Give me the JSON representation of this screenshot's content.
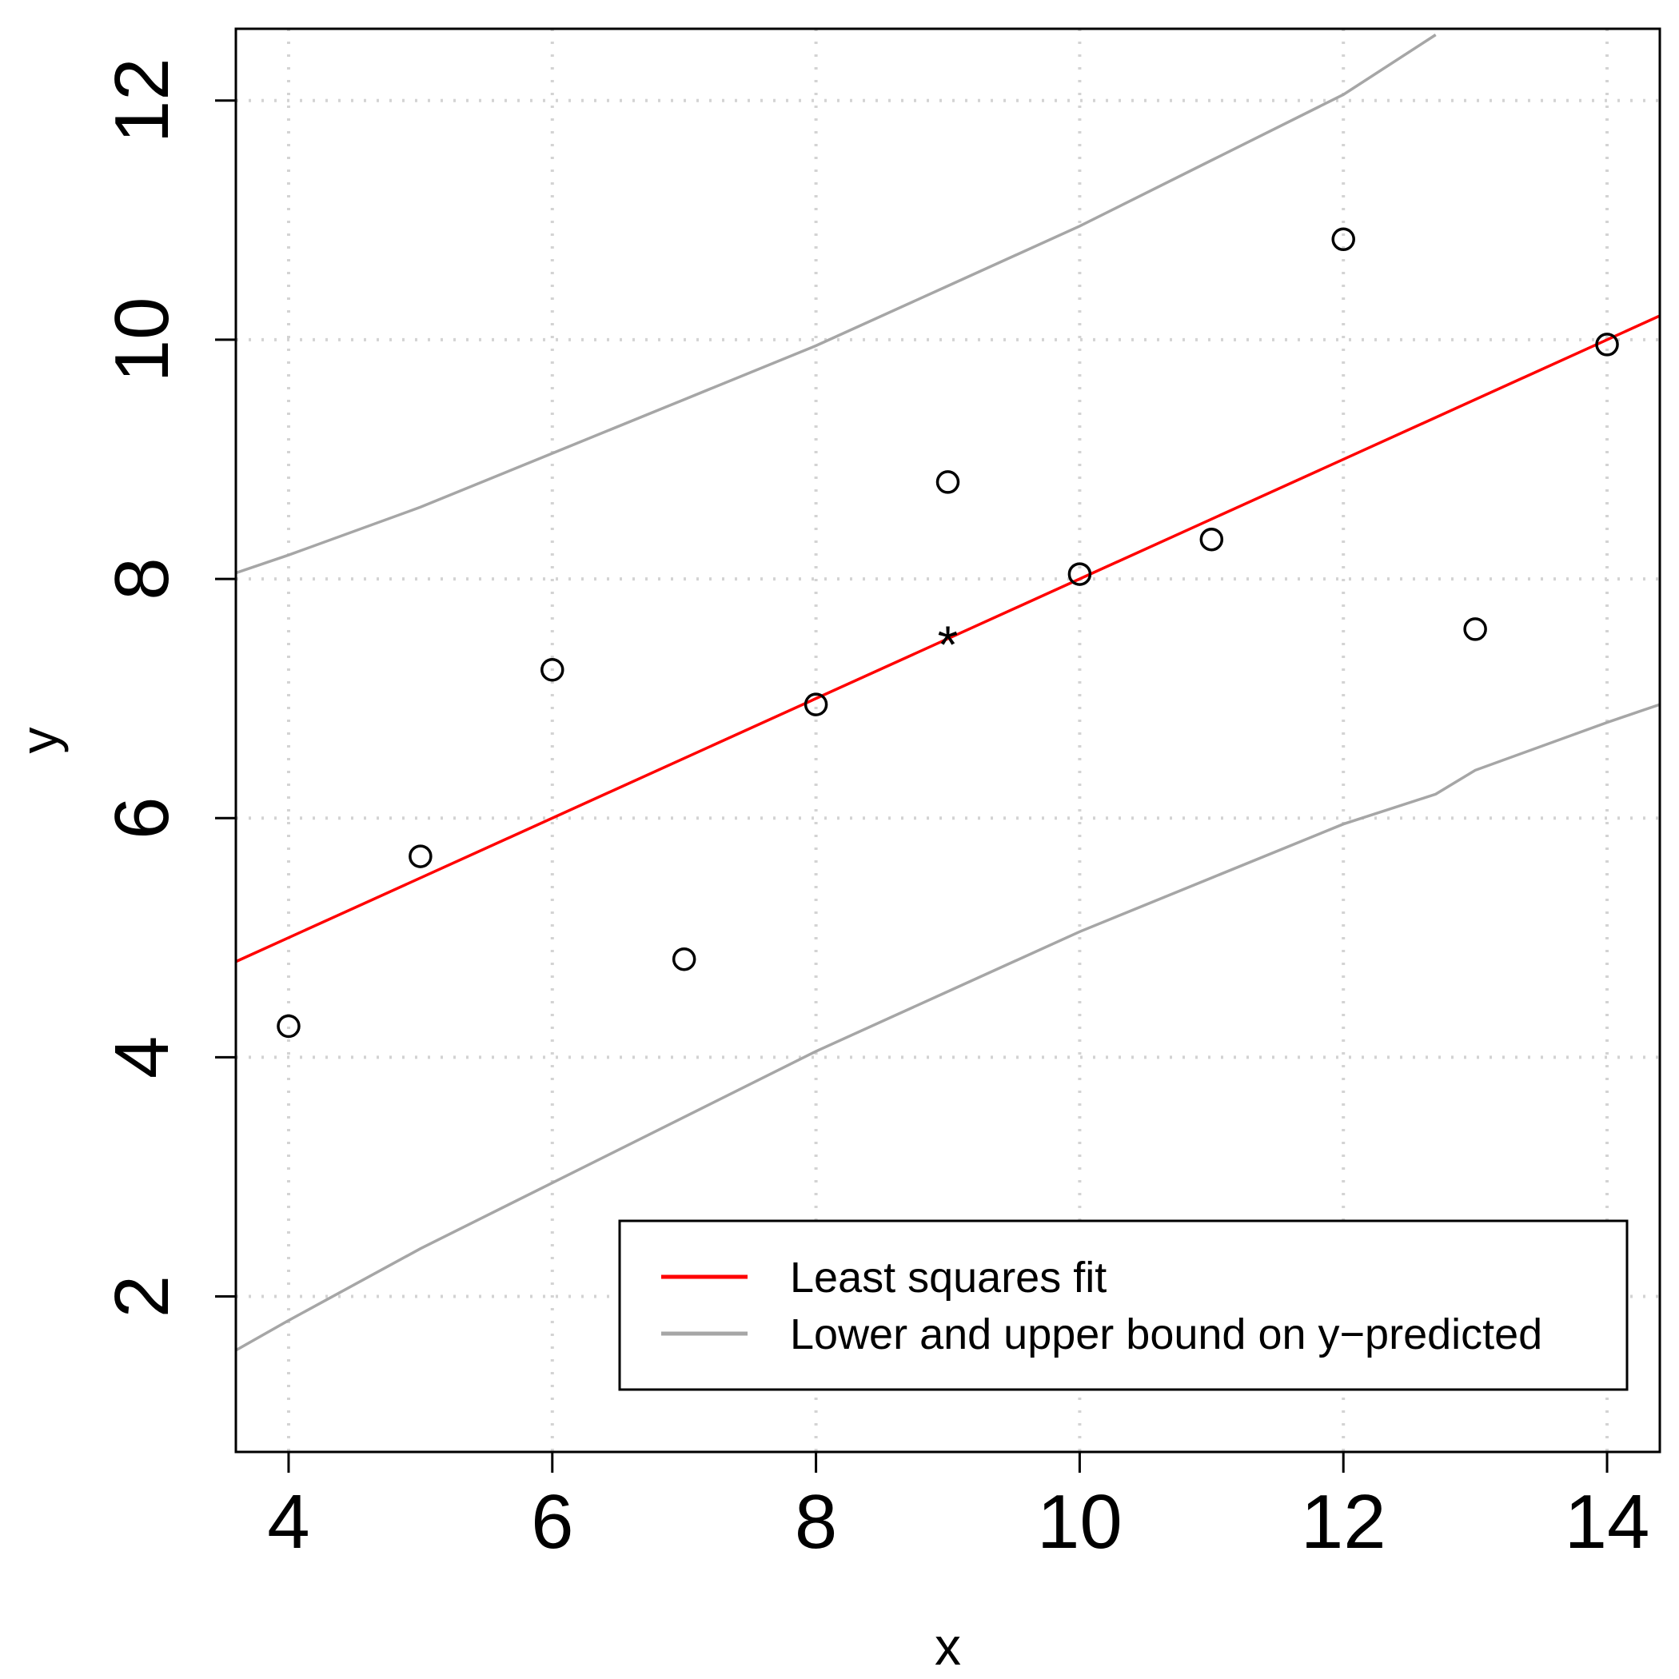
{
  "chart_data": {
    "type": "scatter",
    "title": "",
    "xlabel": "x",
    "ylabel": "y",
    "xlim": [
      3.6,
      14.4
    ],
    "ylim": [
      0.7,
      12.6
    ],
    "grid": true,
    "x_ticks": [
      4,
      6,
      8,
      10,
      12,
      14
    ],
    "y_ticks": [
      2,
      4,
      6,
      8,
      10,
      12
    ],
    "points": {
      "x": [
        4,
        5,
        6,
        7,
        8,
        9,
        10,
        11,
        12,
        13,
        14
      ],
      "y": [
        4.26,
        5.68,
        7.24,
        4.82,
        6.95,
        8.81,
        8.04,
        8.33,
        10.84,
        7.58,
        9.96
      ]
    },
    "mean_point": {
      "x": 9,
      "y": 7.5,
      "marker": "*"
    },
    "fit_line": {
      "name": "Least squares fit",
      "intercept": 3.0,
      "slope": 0.5,
      "color": "#ff0000"
    },
    "bounds": {
      "name": "Lower and upper bound on y−predicted",
      "color": "#a6a6a6",
      "x": [
        3.6,
        4,
        5,
        6,
        7,
        8,
        9,
        10,
        11,
        12,
        12.7,
        13,
        14,
        14.4
      ],
      "upper": [
        8.05,
        8.2,
        8.6,
        9.05,
        9.5,
        9.95,
        10.45,
        10.95,
        11.5,
        12.05,
        12.55,
        null,
        null,
        null
      ],
      "lower": [
        1.55,
        1.8,
        2.4,
        2.95,
        3.5,
        4.05,
        4.55,
        5.05,
        5.5,
        5.95,
        6.2,
        6.4,
        6.8,
        6.95
      ]
    },
    "legend": {
      "position": "bottom-right",
      "entries": [
        {
          "label": "Least squares fit",
          "color": "#ff0000"
        },
        {
          "label": "Lower and upper bound on y−predicted",
          "color": "#a6a6a6"
        }
      ]
    }
  }
}
